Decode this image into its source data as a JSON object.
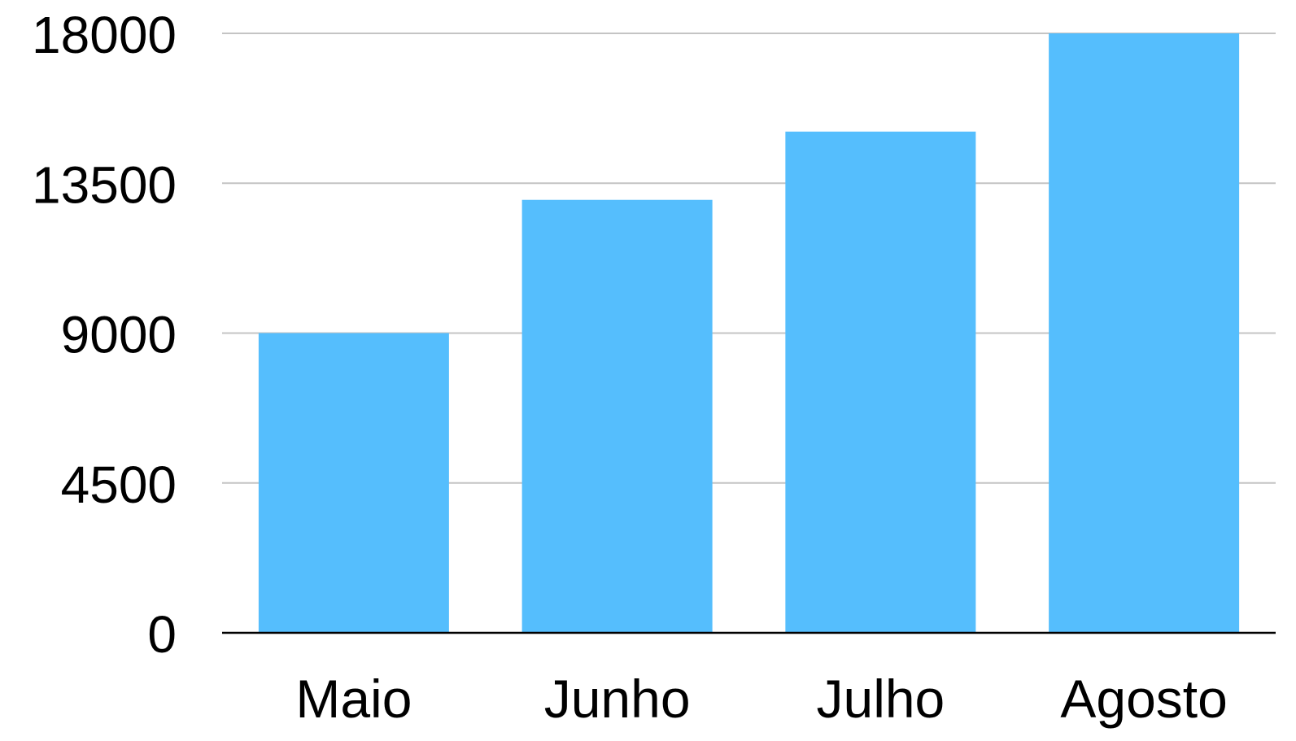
{
  "chart_data": {
    "type": "bar",
    "title": "",
    "xlabel": "",
    "ylabel": "",
    "categories": [
      "Maio",
      "Junho",
      "Julho",
      "Agosto"
    ],
    "values": [
      9000,
      13000,
      15050,
      18000
    ],
    "ylim": [
      0,
      18000
    ],
    "yticks": [
      0,
      4500,
      9000,
      13500,
      18000
    ],
    "ytick_labels": [
      "0",
      "4500",
      "9000",
      "13500",
      "18000"
    ],
    "grid": true,
    "legend": "none",
    "colors": {
      "bar": "#55befd",
      "grid": "#c4c4c4",
      "axis": "#000000",
      "text": "#000000"
    }
  }
}
